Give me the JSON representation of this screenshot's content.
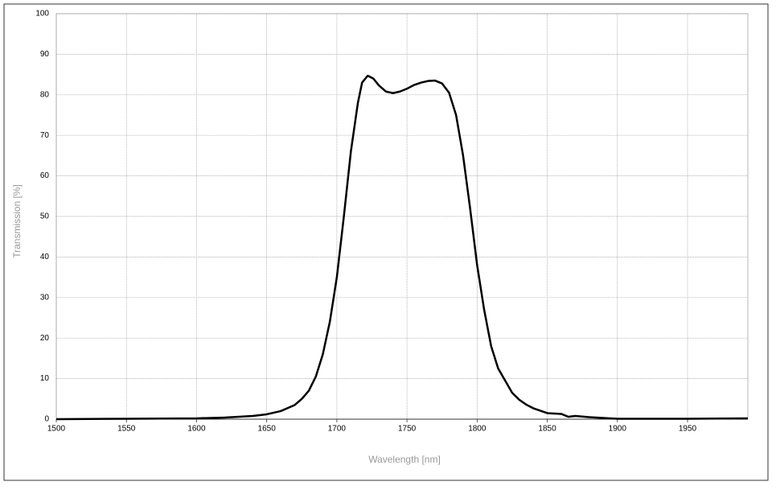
{
  "chart_data": {
    "type": "line",
    "xlabel": "Wavelength [nm]",
    "ylabel": "Transmission [%]",
    "x": [
      1500,
      1550,
      1600,
      1620,
      1640,
      1650,
      1660,
      1670,
      1675,
      1680,
      1685,
      1690,
      1695,
      1700,
      1705,
      1710,
      1715,
      1718,
      1722,
      1726,
      1730,
      1735,
      1740,
      1745,
      1750,
      1755,
      1760,
      1765,
      1770,
      1775,
      1780,
      1785,
      1790,
      1795,
      1800,
      1805,
      1810,
      1815,
      1820,
      1825,
      1830,
      1835,
      1840,
      1845,
      1850,
      1860,
      1865,
      1870,
      1880,
      1890,
      1900,
      1950,
      1993
    ],
    "series": [
      {
        "color": "#000000",
        "values": [
          0,
          0.1,
          0.2,
          0.4,
          0.8,
          1.2,
          2,
          3.5,
          5,
          7,
          10.5,
          16,
          24,
          35,
          50,
          66,
          78,
          83,
          84.7,
          84,
          82.3,
          80.8,
          80.4,
          80.8,
          81.5,
          82.4,
          83,
          83.4,
          83.5,
          82.8,
          80.5,
          75,
          65,
          52,
          38,
          27,
          18,
          12.5,
          9.5,
          6.5,
          4.8,
          3.6,
          2.7,
          2.1,
          1.5,
          1.3,
          0.6,
          0.8,
          0.5,
          0.3,
          0.1,
          0.1,
          0.2
        ]
      }
    ],
    "xlim": [
      1500,
      1993
    ],
    "ylim": [
      0,
      100
    ],
    "xticks": [
      1500,
      1550,
      1600,
      1650,
      1700,
      1750,
      1800,
      1850,
      1900,
      1950
    ],
    "yticks": [
      0,
      10,
      20,
      30,
      40,
      50,
      60,
      70,
      80,
      90,
      100
    ],
    "grid": true
  }
}
